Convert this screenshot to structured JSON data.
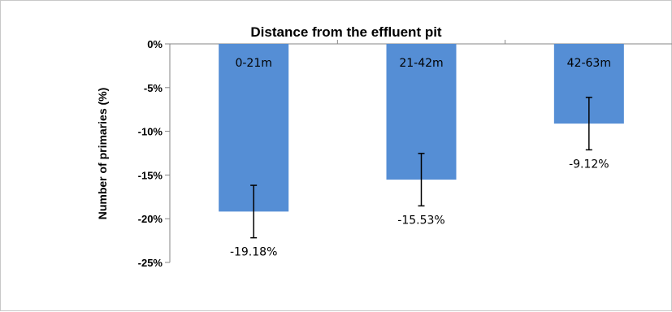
{
  "chart_data": {
    "type": "bar",
    "title": "Distance from the effluent pit",
    "ylabel": "Number of primaries (%)",
    "xlabel": "",
    "categories": [
      "0-21m",
      "21-42m",
      "42-63m"
    ],
    "values": [
      -19.18,
      -15.53,
      -9.12
    ],
    "value_labels": [
      "-19.18%",
      "-15.53%",
      "-9.12%"
    ],
    "error_bars": [
      3,
      3,
      3
    ],
    "ylim": [
      -25,
      0
    ],
    "yticks": [
      0,
      -5,
      -10,
      -15,
      -20,
      -25
    ],
    "ytick_labels": [
      "0%",
      "-5%",
      "-10%",
      "-15%",
      "-20%",
      "-25%"
    ],
    "category_label_position": "inside-top-of-bar",
    "bar_color": "#558ed5",
    "grid": false,
    "legend": "none"
  }
}
